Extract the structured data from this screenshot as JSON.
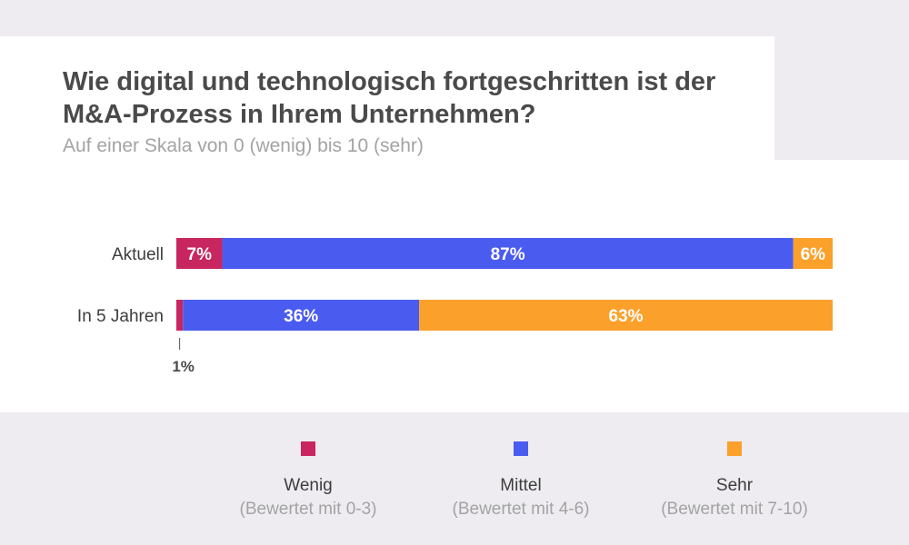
{
  "header": {
    "title": "Wie digital und technologisch fortgeschritten ist der M&A-Prozess in Ihrem Unternehmen?",
    "subtitle": "Auf einer Skala von 0 (wenig) bis 10 (sehr)"
  },
  "colors": {
    "wenig": "#c8265e",
    "mittel": "#4a5bf0",
    "sehr": "#fba02a",
    "title_text": "#4a4a4a",
    "muted_text": "#a3a3a3",
    "background": "#eeecf1"
  },
  "chart_data": {
    "type": "bar",
    "orientation": "horizontal",
    "stacked": true,
    "categories": [
      "Aktuell",
      "In 5 Jahren"
    ],
    "series": [
      {
        "name": "Wenig",
        "values": [
          7,
          1
        ],
        "labels": [
          "7%",
          "1%"
        ]
      },
      {
        "name": "Mittel",
        "values": [
          87,
          36
        ],
        "labels": [
          "87%",
          "36%"
        ]
      },
      {
        "name": "Sehr",
        "values": [
          6,
          63
        ],
        "labels": [
          "6%",
          "63%"
        ]
      }
    ],
    "xlim": [
      0,
      100
    ],
    "grid": false,
    "legend_position": "bottom"
  },
  "legend": {
    "items": [
      {
        "name": "Wenig",
        "desc": "(Bewertet mit 0-3)"
      },
      {
        "name": "Mittel",
        "desc": "(Bewertet mit 4-6)"
      },
      {
        "name": "Sehr",
        "desc": "(Bewertet mit 7-10)"
      }
    ]
  }
}
